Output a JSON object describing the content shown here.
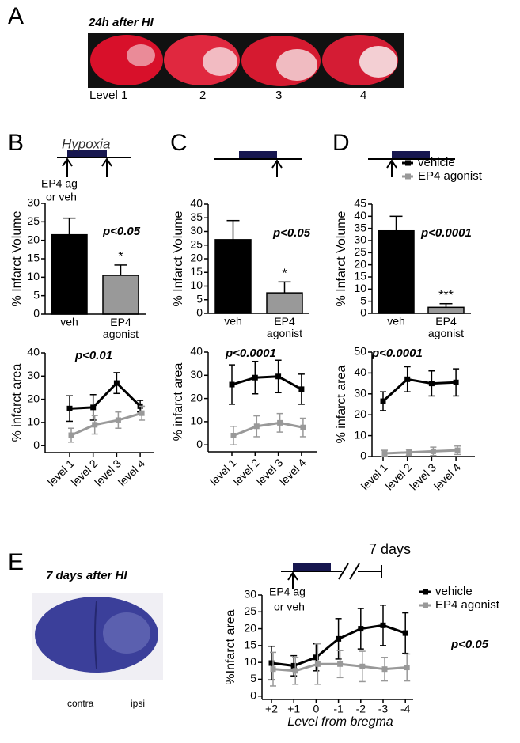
{
  "figure": {
    "panel_labels": [
      "A",
      "B",
      "C",
      "D",
      "E"
    ],
    "panel_a": {
      "title": "24h after HI",
      "levels": [
        "Level 1",
        "2",
        "3",
        "4"
      ]
    },
    "timeline_b": {
      "label": "Hypoxia",
      "arrow_text": [
        "EP4 ag",
        "or veh"
      ]
    },
    "timeline_e": {
      "arrow_text": [
        "EP4 ag",
        "or veh"
      ],
      "duration": "7 days"
    },
    "panel_e": {
      "title": "7 days after HI",
      "sides": [
        "contra",
        "ipsi"
      ]
    }
  },
  "chart_data": [
    {
      "type": "bar",
      "ylabel": "% Infarct Volume",
      "categories": [
        "veh",
        "EP4 agonist"
      ],
      "values": [
        21.5,
        10.5
      ],
      "errors": [
        4.5,
        2.8
      ],
      "colors": [
        "#000000",
        "#999999"
      ],
      "ylim": [
        0,
        30
      ],
      "yticks": [
        0,
        5,
        10,
        15,
        20,
        25,
        30
      ],
      "annotation": "p<0.05",
      "significance": "*"
    },
    {
      "type": "bar",
      "ylabel": "% Infarct Volume",
      "categories": [
        "veh",
        "EP4 agonist"
      ],
      "values": [
        27,
        7.5
      ],
      "errors": [
        7,
        4
      ],
      "colors": [
        "#000000",
        "#999999"
      ],
      "ylim": [
        0,
        40
      ],
      "yticks": [
        0,
        5,
        10,
        15,
        20,
        25,
        30,
        35,
        40
      ],
      "annotation": "p<0.05",
      "significance": "*"
    },
    {
      "type": "bar",
      "ylabel": "% Infarct Volume",
      "categories": [
        "veh",
        "EP4 agonist"
      ],
      "values": [
        34,
        2.5
      ],
      "errors": [
        6,
        1.5
      ],
      "colors": [
        "#000000",
        "#999999"
      ],
      "ylim": [
        0,
        45
      ],
      "yticks": [
        0,
        5,
        10,
        15,
        20,
        25,
        30,
        35,
        40,
        45
      ],
      "annotation": "p<0.0001",
      "significance": "***"
    },
    {
      "type": "line",
      "ylabel": "% infarct area",
      "categories": [
        "level 1",
        "level 2",
        "level 3",
        "level 4"
      ],
      "ylim": [
        -3,
        40
      ],
      "yticks": [
        0,
        10,
        20,
        30,
        40
      ],
      "annotation": "p<0.01",
      "series": [
        {
          "color": "#000000",
          "values": [
            16,
            16.5,
            27,
            17
          ],
          "errors": [
            5.5,
            5.5,
            4.5,
            2.5
          ]
        },
        {
          "color": "#999999",
          "values": [
            4.5,
            9,
            11,
            14
          ],
          "errors": [
            3,
            4,
            3.5,
            3
          ]
        }
      ]
    },
    {
      "type": "line",
      "ylabel": "% infarct area",
      "categories": [
        "level 1",
        "level 2",
        "level 3",
        "level 4"
      ],
      "ylim": [
        -3,
        40
      ],
      "yticks": [
        0,
        10,
        20,
        30,
        40
      ],
      "annotation": "p<0.0001",
      "series": [
        {
          "color": "#000000",
          "values": [
            26,
            29,
            29.5,
            24
          ],
          "errors": [
            8.5,
            7,
            7,
            6.5
          ]
        },
        {
          "color": "#999999",
          "values": [
            4,
            8,
            9.5,
            7.5
          ],
          "errors": [
            4,
            4.5,
            4,
            4
          ]
        }
      ]
    },
    {
      "type": "line",
      "ylabel": "% infarct area",
      "categories": [
        "level 1",
        "level 2",
        "level 3",
        "level 4"
      ],
      "ylim": [
        0,
        50
      ],
      "yticks": [
        0,
        10,
        20,
        30,
        40,
        50
      ],
      "annotation": "p<0.0001",
      "legend": true,
      "series": [
        {
          "name": "vehicle",
          "color": "#000000",
          "values": [
            26.5,
            37,
            35,
            35.5
          ],
          "errors": [
            4.5,
            6,
            6,
            6.5
          ]
        },
        {
          "name": "EP4 agonist",
          "color": "#999999",
          "values": [
            1.5,
            2,
            2.5,
            3
          ],
          "errors": [
            1.5,
            1.5,
            2,
            2
          ]
        }
      ]
    },
    {
      "type": "line",
      "ylabel": "%Infarct area",
      "xlabel": "Level from bregma",
      "categories": [
        "+2",
        "+1",
        "0",
        "-1",
        "-2",
        "-3",
        "-4"
      ],
      "ylim": [
        -1,
        30
      ],
      "yticks": [
        0,
        5,
        10,
        15,
        20,
        25,
        30
      ],
      "annotation": "p<0.05",
      "legend": true,
      "series": [
        {
          "name": "vehicle",
          "color": "#000000",
          "values": [
            9.8,
            9,
            11.5,
            17,
            20,
            21,
            18.7
          ],
          "errors": [
            5,
            3,
            4,
            6,
            6,
            6,
            6
          ]
        },
        {
          "name": "EP4 agonist",
          "color": "#999999",
          "values": [
            8,
            7.5,
            9.5,
            9.5,
            8.8,
            8,
            8.5
          ],
          "errors": [
            5,
            4,
            6,
            4,
            4.5,
            3.5,
            4
          ]
        }
      ]
    }
  ]
}
